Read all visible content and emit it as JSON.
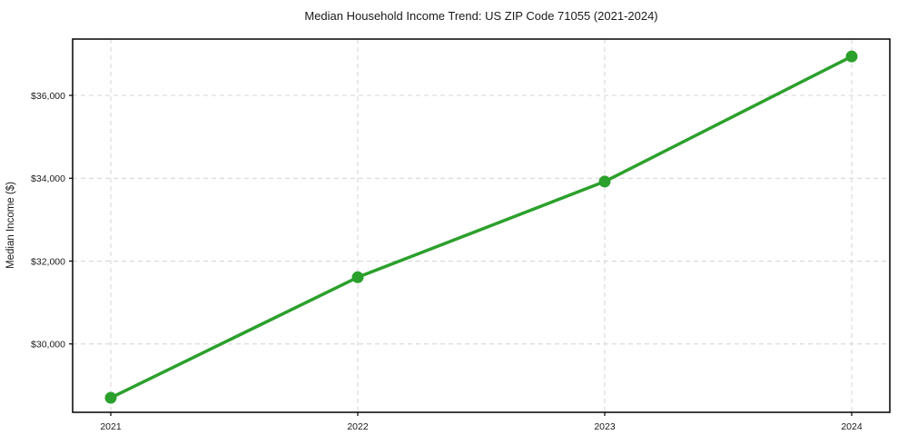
{
  "chart_data": {
    "type": "line",
    "title": "Median Household Income Trend: US ZIP Code 71055 (2021-2024)",
    "categories": [
      "2021",
      "2022",
      "2023",
      "2024"
    ],
    "x": [
      2021,
      2022,
      2023,
      2024
    ],
    "series": [
      {
        "name": "Median Household Income",
        "values": [
          28700,
          31610,
          33920,
          36940
        ]
      }
    ],
    "xlabel": "",
    "ylabel": "Median Income ($)",
    "ylim": [
      28350,
      37360
    ],
    "yticks": [
      30000,
      32000,
      34000,
      36000
    ],
    "ytick_labels": [
      "$30,000",
      "$32,000",
      "$34,000",
      "$36,000"
    ],
    "grid": true,
    "grid_style": "dashed",
    "legend": false,
    "line_color": "#2ca02c",
    "marker_color": "#2ca02c",
    "marker": "circle",
    "grid_color": "#d4d4d4",
    "spine_color": "#000000",
    "background_color": "#ffffff"
  }
}
